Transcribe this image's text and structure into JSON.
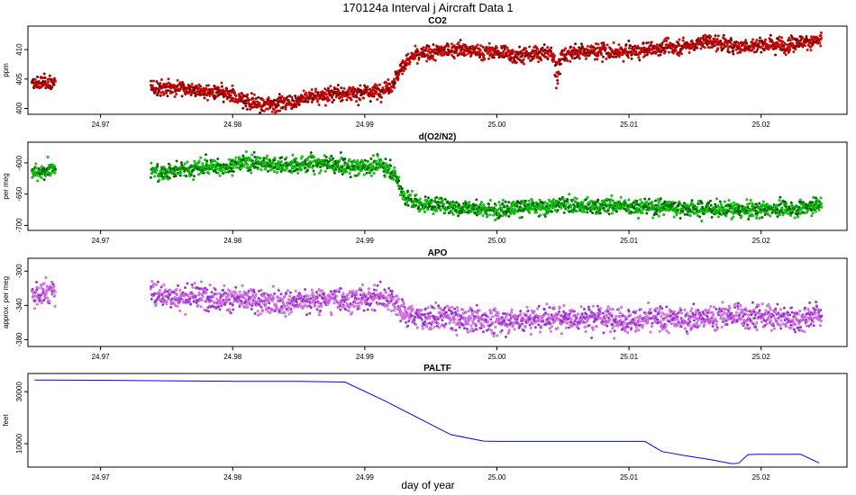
{
  "figure": {
    "title": "170124a   Interval j Aircraft Data 1",
    "xlabel": "day of year"
  },
  "chart_data": [
    {
      "type": "scatter",
      "title": "CO2",
      "ylabel": "ppm",
      "xlim": [
        24.9645,
        25.0265
      ],
      "ylim": [
        399,
        414
      ],
      "x_ticks": [
        "24.97",
        "24.98",
        "24.99",
        "25.00",
        "25.01",
        "25.02"
      ],
      "y_ticks": [
        "400",
        "405",
        "410"
      ],
      "colors": {
        "fill": "#ff0000",
        "edge": "#7a0000"
      },
      "series": [
        {
          "name": "CO2",
          "x": [
            24.965,
            24.9655,
            24.966,
            24.9665,
            24.9738,
            24.975,
            24.976,
            24.977,
            24.978,
            24.979,
            24.98,
            24.981,
            24.982,
            24.983,
            24.984,
            24.985,
            24.986,
            24.987,
            24.988,
            24.989,
            24.99,
            24.991,
            24.992,
            24.9925,
            24.993,
            24.9935,
            24.994,
            24.995,
            24.996,
            24.997,
            24.998,
            24.999,
            25.0,
            25.001,
            25.002,
            25.003,
            25.004,
            25.0045,
            25.005,
            25.006,
            25.007,
            25.008,
            25.009,
            25.01,
            25.011,
            25.012,
            25.013,
            25.014,
            25.015,
            25.016,
            25.017,
            25.018,
            25.019,
            25.02,
            25.021,
            25.022,
            25.023,
            25.0245
          ],
          "y": [
            404.0,
            404.3,
            404.5,
            404.2,
            403.5,
            403.5,
            403.6,
            403.2,
            402.8,
            402.6,
            402.0,
            401.2,
            400.7,
            400.8,
            401.0,
            401.3,
            402.0,
            402.3,
            402.7,
            402.5,
            402.6,
            402.9,
            403.8,
            405.8,
            407.6,
            408.6,
            409.0,
            409.5,
            409.8,
            410.2,
            409.8,
            409.6,
            409.5,
            409.2,
            409.0,
            409.3,
            409.5,
            408.0,
            409.3,
            409.5,
            409.7,
            409.8,
            409.5,
            409.7,
            409.8,
            410.2,
            410.4,
            410.5,
            411.0,
            411.5,
            411.0,
            410.6,
            410.6,
            410.9,
            411.0,
            410.8,
            411.3,
            411.5
          ]
        }
      ]
    },
    {
      "type": "scatter",
      "title": "d(O2/N2)",
      "ylabel": "per meg",
      "xlim": [
        24.9645,
        25.0265
      ],
      "ylim": [
        -708,
        -567
      ],
      "x_ticks": [
        "24.97",
        "24.98",
        "24.99",
        "25.00",
        "25.01",
        "25.02"
      ],
      "y_ticks": [
        "-600",
        "-650",
        "-700"
      ],
      "y_tick_values": [
        -600,
        -650,
        -700
      ],
      "colors": {
        "fill": "#00ee00",
        "edge": "#006400"
      },
      "series": [
        {
          "name": "d(O2/N2)",
          "x": [
            24.965,
            24.9655,
            24.966,
            24.9665,
            24.9738,
            24.975,
            24.976,
            24.977,
            24.978,
            24.979,
            24.98,
            24.981,
            24.982,
            24.983,
            24.984,
            24.985,
            24.986,
            24.987,
            24.988,
            24.989,
            24.99,
            24.991,
            24.992,
            24.9925,
            24.993,
            24.9935,
            24.994,
            24.995,
            24.996,
            24.997,
            24.998,
            24.999,
            25.0,
            25.001,
            25.002,
            25.003,
            25.004,
            25.005,
            25.006,
            25.007,
            25.008,
            25.009,
            25.01,
            25.011,
            25.012,
            25.013,
            25.014,
            25.015,
            25.016,
            25.017,
            25.018,
            25.019,
            25.02,
            25.021,
            25.022,
            25.023,
            25.0245
          ],
          "y": [
            -615,
            -618,
            -610,
            -612,
            -612,
            -615,
            -612,
            -610,
            -605,
            -607,
            -603,
            -598,
            -600,
            -602,
            -605,
            -603,
            -600,
            -602,
            -605,
            -607,
            -606,
            -602,
            -612,
            -630,
            -655,
            -660,
            -665,
            -668,
            -668,
            -673,
            -672,
            -675,
            -675,
            -672,
            -670,
            -672,
            -670,
            -666,
            -668,
            -670,
            -670,
            -668,
            -670,
            -672,
            -671,
            -670,
            -672,
            -675,
            -673,
            -675,
            -674,
            -676,
            -674,
            -673,
            -674,
            -672,
            -666
          ]
        }
      ]
    },
    {
      "type": "scatter",
      "title": "APO",
      "ylabel": "approx. per meg",
      "xlim": [
        24.9645,
        25.0265
      ],
      "ylim": [
        -388,
        -285
      ],
      "x_ticks": [
        "24.97",
        "24.98",
        "24.99",
        "25.00",
        "25.01",
        "25.02"
      ],
      "y_ticks": [
        "-300",
        "-340",
        "-380"
      ],
      "y_tick_values": [
        -300,
        -340,
        -380
      ],
      "colors": {
        "fill": "#ee82ee",
        "edge": "#9932cc"
      },
      "series": [
        {
          "name": "APO",
          "x": [
            24.965,
            24.9655,
            24.966,
            24.9665,
            24.9738,
            24.975,
            24.976,
            24.977,
            24.978,
            24.979,
            24.98,
            24.981,
            24.982,
            24.983,
            24.984,
            24.985,
            24.986,
            24.987,
            24.988,
            24.989,
            24.99,
            24.991,
            24.992,
            24.9925,
            24.993,
            24.9935,
            24.994,
            24.995,
            24.996,
            24.997,
            24.998,
            24.999,
            25.0,
            25.001,
            25.002,
            25.003,
            25.004,
            25.005,
            25.006,
            25.007,
            25.008,
            25.009,
            25.01,
            25.011,
            25.012,
            25.013,
            25.014,
            25.015,
            25.016,
            25.017,
            25.018,
            25.019,
            25.02,
            25.021,
            25.022,
            25.023,
            25.0245
          ],
          "y": [
            -328,
            -326,
            -322,
            -325,
            -325,
            -328,
            -330,
            -330,
            -329,
            -332,
            -333,
            -334,
            -336,
            -337,
            -336,
            -335,
            -334,
            -333,
            -332,
            -334,
            -331,
            -330,
            -332,
            -338,
            -348,
            -352,
            -353,
            -354,
            -354,
            -356,
            -356,
            -357,
            -358,
            -358,
            -357,
            -356,
            -355,
            -354,
            -355,
            -356,
            -355,
            -356,
            -358,
            -357,
            -356,
            -356,
            -356,
            -355,
            -354,
            -353,
            -352,
            -352,
            -353,
            -354,
            -356,
            -356,
            -350
          ]
        }
      ]
    },
    {
      "type": "line",
      "title": "PALTF",
      "ylabel": "feet",
      "xlim": [
        24.9645,
        25.0265
      ],
      "ylim": [
        1000,
        37000
      ],
      "x_ticks": [
        "24.97",
        "24.98",
        "24.99",
        "25.00",
        "25.01",
        "25.02"
      ],
      "y_ticks": [
        "10000",
        "30000"
      ],
      "y_tick_values": [
        10000,
        30000
      ],
      "colors": {
        "line": "#0000ff"
      },
      "series": [
        {
          "name": "PALTF",
          "x": [
            24.965,
            24.97,
            24.975,
            24.98,
            24.985,
            24.9885,
            24.9915,
            24.994,
            24.9965,
            24.999,
            25.0,
            25.005,
            25.0112,
            25.0125,
            25.0145,
            25.016,
            25.0178,
            25.0183,
            25.019,
            25.0198,
            25.021,
            25.023,
            25.0244
          ],
          "y": [
            34500,
            34400,
            34200,
            34000,
            34000,
            33700,
            26500,
            20000,
            13500,
            11000,
            10900,
            10900,
            10900,
            7000,
            5200,
            4000,
            2300,
            2500,
            5800,
            5900,
            5900,
            5900,
            2600
          ]
        }
      ]
    }
  ]
}
